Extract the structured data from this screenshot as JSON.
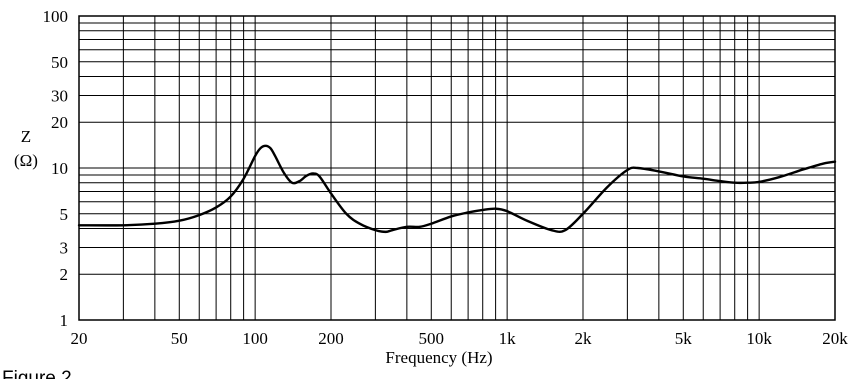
{
  "chart_data": {
    "type": "line",
    "title": "",
    "xlabel": "Frequency (Hz)",
    "ylabel_top": "Z",
    "ylabel_bottom": "(Ω)",
    "x_scale": "log",
    "y_scale": "log",
    "xlim": [
      20,
      20000
    ],
    "ylim": [
      1,
      100
    ],
    "grid": true,
    "x_ticks": [
      {
        "value": 20,
        "label": "20"
      },
      {
        "value": 50,
        "label": "50"
      },
      {
        "value": 100,
        "label": "100"
      },
      {
        "value": 200,
        "label": "200"
      },
      {
        "value": 500,
        "label": "500"
      },
      {
        "value": 1000,
        "label": "1k"
      },
      {
        "value": 2000,
        "label": "2k"
      },
      {
        "value": 5000,
        "label": "5k"
      },
      {
        "value": 10000,
        "label": "10k"
      },
      {
        "value": 20000,
        "label": "20k"
      }
    ],
    "y_ticks": [
      {
        "value": 1,
        "label": "1"
      },
      {
        "value": 2,
        "label": "2"
      },
      {
        "value": 3,
        "label": "3"
      },
      {
        "value": 5,
        "label": "5"
      },
      {
        "value": 10,
        "label": "10"
      },
      {
        "value": 20,
        "label": "20"
      },
      {
        "value": 30,
        "label": "30"
      },
      {
        "value": 50,
        "label": "50"
      },
      {
        "value": 100,
        "label": "100"
      }
    ],
    "series": [
      {
        "x": [
          20,
          30,
          40,
          50,
          60,
          70,
          80,
          90,
          100,
          105,
          110,
          115,
          120,
          130,
          140,
          150,
          160,
          170,
          180,
          200,
          230,
          260,
          300,
          330,
          350,
          400,
          450,
          500,
          600,
          700,
          800,
          900,
          1000,
          1200,
          1500,
          1700,
          2000,
          2500,
          3000,
          3300,
          4000,
          5000,
          6000,
          7000,
          8000,
          9000,
          10000,
          12000,
          15000,
          18000,
          20000
        ],
        "y": [
          4.2,
          4.2,
          4.3,
          4.5,
          4.9,
          5.5,
          6.5,
          8.5,
          12.0,
          13.5,
          14.0,
          13.5,
          12.0,
          9.3,
          8.0,
          8.2,
          8.9,
          9.2,
          8.8,
          6.8,
          5.0,
          4.3,
          3.9,
          3.8,
          3.9,
          4.1,
          4.1,
          4.3,
          4.8,
          5.1,
          5.3,
          5.4,
          5.2,
          4.5,
          3.9,
          3.9,
          5.0,
          7.5,
          9.7,
          10.0,
          9.5,
          8.8,
          8.5,
          8.2,
          8.0,
          8.0,
          8.1,
          8.7,
          9.8,
          10.7,
          11.0
        ]
      }
    ]
  },
  "figure_caption": "Figure 2"
}
